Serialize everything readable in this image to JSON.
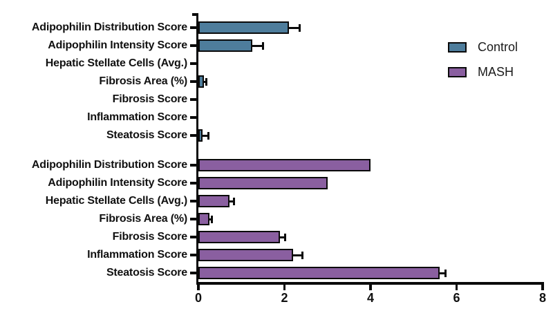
{
  "chart_data": {
    "type": "bar",
    "orientation": "horizontal",
    "title": "",
    "xlabel": "",
    "ylabel": "",
    "xlim": [
      0,
      8
    ],
    "xticks": [
      0,
      2,
      4,
      6,
      8
    ],
    "grid": false,
    "legend_position": "top-right",
    "categories": [
      "Adipophilin Distribution Score",
      "Adipophilin Intensity Score",
      "Hepatic Stellate Cells (Avg.)",
      "Fibrosis Area (%)",
      "Fibrosis Score",
      "Inflammation Score",
      "Steatosis Score"
    ],
    "series": [
      {
        "name": "Control",
        "color": "#4e7d9c",
        "values": [
          2.1,
          1.25,
          0,
          0.13,
          0,
          0,
          0.1
        ],
        "errors": [
          0.25,
          0.25,
          0,
          0.05,
          0,
          0,
          0.13
        ]
      },
      {
        "name": "MASH",
        "color": "#8a5fa0",
        "values": [
          4.0,
          3.0,
          0.72,
          0.25,
          1.9,
          2.2,
          5.6
        ],
        "errors": [
          0,
          0,
          0.1,
          0.07,
          0.12,
          0.22,
          0.15
        ]
      }
    ]
  },
  "colors": {
    "axis": "#0a0a0a",
    "control_fill": "#4e7d9c",
    "mash_fill": "#8a5fa0",
    "text": "#111111"
  }
}
